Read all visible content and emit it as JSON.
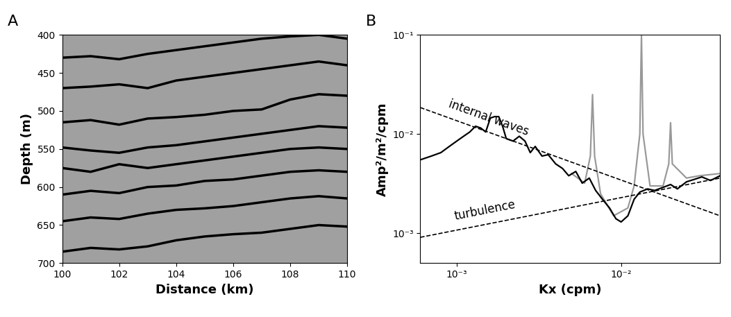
{
  "chart_data": [
    {
      "type": "line",
      "panel_label": "A",
      "x_label": "Distance (km)",
      "y_label": "Depth (m)",
      "xlim": [
        100,
        110
      ],
      "ylim": [
        700,
        400
      ],
      "xticks": [
        100,
        102,
        104,
        106,
        108,
        110
      ],
      "yticks": [
        400,
        450,
        500,
        550,
        600,
        650,
        700
      ],
      "x": [
        100,
        101,
        102,
        103,
        104,
        105,
        106,
        107,
        108,
        109,
        110
      ],
      "series": [
        {
          "color": "#000000",
          "values": [
            430,
            428,
            432,
            425,
            420,
            415,
            410,
            405,
            402,
            400,
            405
          ]
        },
        {
          "color": "#000000",
          "values": [
            470,
            468,
            465,
            470,
            460,
            455,
            450,
            445,
            440,
            435,
            440
          ]
        },
        {
          "color": "#000000",
          "values": [
            515,
            512,
            518,
            510,
            508,
            505,
            500,
            498,
            485,
            478,
            480
          ]
        },
        {
          "color": "#000000",
          "values": [
            548,
            552,
            555,
            548,
            545,
            540,
            535,
            530,
            525,
            520,
            522
          ]
        },
        {
          "color": "#000000",
          "values": [
            575,
            580,
            570,
            575,
            570,
            565,
            560,
            555,
            550,
            548,
            550
          ]
        },
        {
          "color": "#000000",
          "values": [
            610,
            605,
            608,
            600,
            598,
            592,
            590,
            585,
            580,
            578,
            580
          ]
        },
        {
          "color": "#000000",
          "values": [
            645,
            640,
            642,
            635,
            630,
            628,
            625,
            620,
            615,
            612,
            615
          ]
        },
        {
          "color": "#000000",
          "values": [
            685,
            680,
            682,
            678,
            670,
            665,
            662,
            660,
            655,
            650,
            652
          ]
        }
      ]
    },
    {
      "type": "line",
      "panel_label": "B",
      "log": true,
      "x_label": "Kx (cpm)",
      "y_label": "Amp²/m²/cpm",
      "xlim": [
        0.0006,
        0.04
      ],
      "ylim": [
        0.0005,
        0.1
      ],
      "xticks": [
        {
          "value": 0.001,
          "label": "10⁻³"
        },
        {
          "value": 0.01,
          "label": "10⁻²"
        }
      ],
      "yticks": [
        {
          "value": 0.001,
          "label": "10⁻³"
        },
        {
          "value": 0.01,
          "label": "10⁻²"
        },
        {
          "value": 0.1,
          "label": "10⁻¹"
        }
      ],
      "series": [
        {
          "color": "#999999",
          "line_style": "solid",
          "x": [
            0.005,
            0.006,
            0.0065,
            0.0067,
            0.0069,
            0.0075,
            0.009,
            0.011,
            0.012,
            0.013,
            0.0133,
            0.0136,
            0.015,
            0.018,
            0.0195,
            0.02,
            0.0205,
            0.025,
            0.03,
            0.04
          ],
          "values": [
            0.004,
            0.0032,
            0.006,
            0.025,
            0.006,
            0.0025,
            0.0015,
            0.0018,
            0.003,
            0.01,
            0.1,
            0.01,
            0.003,
            0.003,
            0.005,
            0.013,
            0.005,
            0.0036,
            0.0038,
            0.004
          ]
        },
        {
          "color": "#000000",
          "line_style": "solid",
          "x": [
            0.0006,
            0.0007,
            0.0008,
            0.0009,
            0.001,
            0.0011,
            0.0012,
            0.0013,
            0.0014,
            0.0015,
            0.0016,
            0.0017,
            0.0018,
            0.0019,
            0.002,
            0.0022,
            0.0024,
            0.0026,
            0.0028,
            0.003,
            0.0033,
            0.0036,
            0.004,
            0.0044,
            0.0048,
            0.0053,
            0.0058,
            0.0064,
            0.007,
            0.0077,
            0.0085,
            0.0093,
            0.01,
            0.011,
            0.012,
            0.013,
            0.0145,
            0.016,
            0.018,
            0.02,
            0.022,
            0.025,
            0.028,
            0.031,
            0.035,
            0.04
          ],
          "values": [
            0.0055,
            0.006,
            0.0065,
            0.0075,
            0.0085,
            0.0095,
            0.0105,
            0.012,
            0.0115,
            0.0105,
            0.0145,
            0.015,
            0.015,
            0.012,
            0.009,
            0.0085,
            0.0095,
            0.0085,
            0.0065,
            0.0075,
            0.006,
            0.0062,
            0.005,
            0.0045,
            0.0038,
            0.0042,
            0.0032,
            0.0036,
            0.0027,
            0.0022,
            0.0018,
            0.0014,
            0.0013,
            0.0015,
            0.0022,
            0.0026,
            0.0028,
            0.0027,
            0.0029,
            0.0031,
            0.0028,
            0.0033,
            0.0035,
            0.0037,
            0.0034,
            0.0038
          ]
        },
        {
          "name": "internal waves",
          "color": "#000000",
          "line_style": "dashed",
          "x": [
            0.0006,
            0.04
          ],
          "values": [
            0.0185,
            0.0015
          ]
        },
        {
          "name": "turbulence",
          "color": "#000000",
          "line_style": "dashed",
          "x": [
            0.0006,
            0.04
          ],
          "values": [
            0.00091,
            0.0036
          ]
        }
      ]
    }
  ]
}
